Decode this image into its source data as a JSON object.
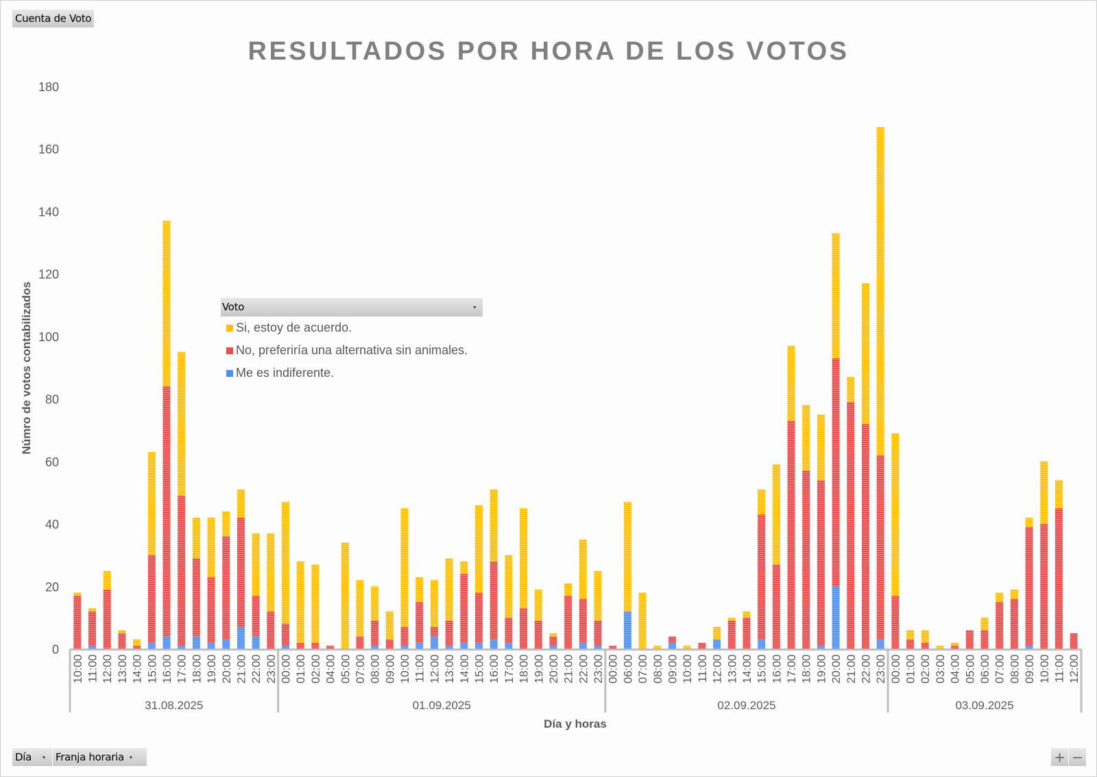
{
  "toolbar": {
    "value_field": "Cuenta de Voto",
    "axis_fields": [
      {
        "label": "Día",
        "dropdown": "▾"
      },
      {
        "label": "Franja horaria",
        "dropdown": "▾"
      }
    ],
    "expand_label": "+",
    "collapse_label": "−"
  },
  "legend": {
    "field_label": "Voto",
    "dropdown": "▾",
    "items": [
      {
        "label": "Si, estoy de acuerdo.",
        "color": "#ffc000"
      },
      {
        "label": "No, preferiría una alternativa sin animales.",
        "color": "#e84c4c"
      },
      {
        "label": "Me es indiferente.",
        "color": "#4f8ff0"
      }
    ]
  },
  "chart_data": {
    "type": "bar",
    "stacked": true,
    "title": "RESULTADOS POR HORA DE LOS VOTOS",
    "xlabel": "Día y horas",
    "ylabel": "Númro de votos contabilizados",
    "ylim": [
      0,
      180
    ],
    "yticks": [
      0,
      20,
      40,
      60,
      80,
      100,
      120,
      140,
      160,
      180
    ],
    "grid": false,
    "legend_position": "inside-left",
    "groups": [
      {
        "day": "31.08.2025",
        "hours": [
          "10:00",
          "11:00",
          "12:00",
          "13:00",
          "14:00",
          "15:00",
          "16:00",
          "17:00",
          "18:00",
          "19:00",
          "20:00",
          "21:00",
          "22:00",
          "23:00"
        ]
      },
      {
        "day": "01.09.2025",
        "hours": [
          "00:00",
          "01:00",
          "02:00",
          "04:00",
          "05:00",
          "07:00",
          "08:00",
          "09:00",
          "10:00",
          "11:00",
          "12:00",
          "13:00",
          "14:00",
          "15:00",
          "16:00",
          "17:00",
          "18:00",
          "19:00",
          "20:00",
          "21:00",
          "22:00",
          "23:00"
        ]
      },
      {
        "day": "02.09.2025",
        "hours": [
          "00:00",
          "06:00",
          "07:00",
          "08:00",
          "09:00",
          "10:00",
          "11:00",
          "12:00",
          "13:00",
          "14:00",
          "15:00",
          "16:00",
          "17:00",
          "18:00",
          "19:00",
          "20:00",
          "21:00",
          "22:00",
          "23:00"
        ]
      },
      {
        "day": "03.09.2025",
        "hours": [
          "00:00",
          "01:00",
          "02:00",
          "03:00",
          "04:00",
          "05:00",
          "06:00",
          "07:00",
          "08:00",
          "09:00",
          "10:00",
          "11:00",
          "12:00"
        ]
      }
    ],
    "series": [
      {
        "name": "Me es indiferente.",
        "color": "#4f8ff0",
        "values": [
          0,
          1,
          0,
          0,
          0,
          2,
          4,
          1,
          4,
          2,
          3,
          7,
          4,
          0,
          1,
          0,
          0,
          0,
          0,
          0,
          1,
          0,
          1,
          2,
          4,
          1,
          2,
          2,
          3,
          2,
          0,
          0,
          1,
          0,
          2,
          1,
          0,
          12,
          0,
          0,
          2,
          0,
          0,
          3,
          0,
          0,
          3,
          0,
          0,
          0,
          1,
          20,
          0,
          0,
          3,
          0,
          0,
          0,
          0,
          0,
          0,
          0,
          0,
          0,
          1,
          0,
          0,
          0
        ]
      },
      {
        "name": "No, preferiría una alternativa sin animales.",
        "color": "#e84c4c",
        "values": [
          17,
          11,
          19,
          5,
          1,
          28,
          80,
          48,
          25,
          21,
          33,
          35,
          13,
          12,
          7,
          2,
          2,
          1,
          0,
          4,
          8,
          3,
          6,
          13,
          3,
          8,
          22,
          16,
          25,
          8,
          13,
          9,
          3,
          17,
          14,
          8,
          1,
          0,
          0,
          0,
          2,
          0,
          2,
          0,
          9,
          10,
          40,
          27,
          73,
          57,
          53,
          73,
          79,
          72,
          59,
          17,
          3,
          2,
          0,
          1,
          6,
          6,
          15,
          16,
          38,
          40,
          45,
          5
        ]
      },
      {
        "name": "Si, estoy de acuerdo.",
        "color": "#ffc000",
        "values": [
          1,
          1,
          6,
          1,
          2,
          33,
          53,
          46,
          13,
          19,
          8,
          9,
          20,
          25,
          39,
          26,
          25,
          0,
          34,
          18,
          11,
          9,
          38,
          8,
          15,
          20,
          4,
          28,
          23,
          20,
          32,
          10,
          1,
          4,
          19,
          16,
          0,
          35,
          18,
          1,
          0,
          1,
          0,
          4,
          1,
          2,
          8,
          32,
          24,
          21,
          21,
          40,
          8,
          45,
          105,
          52,
          3,
          4,
          1,
          1,
          0,
          4,
          3,
          3,
          3,
          20,
          9,
          0
        ]
      }
    ]
  }
}
